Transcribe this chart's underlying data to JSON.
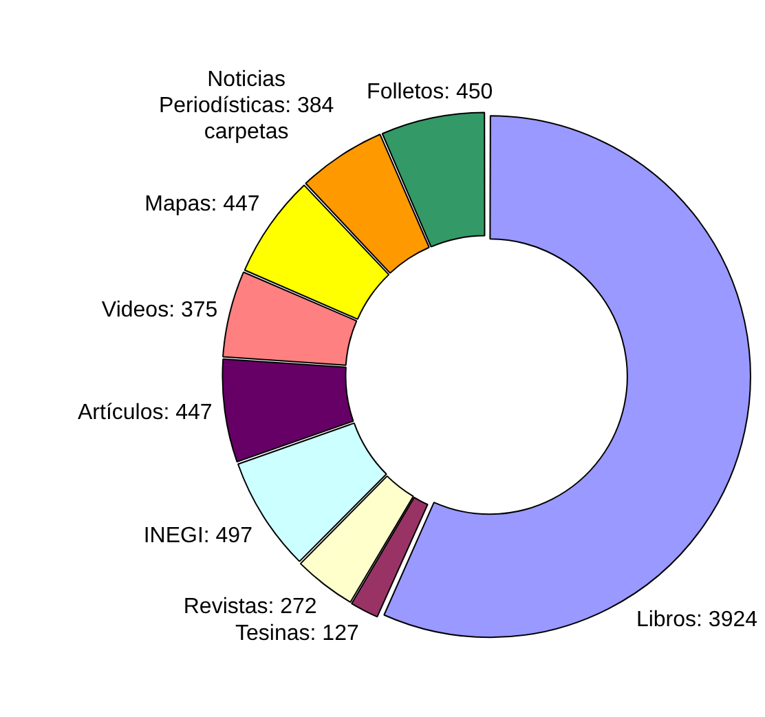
{
  "chart_data": {
    "type": "donut",
    "categories": [
      "Libros",
      "Tesinas",
      "Revistas",
      "INEGI",
      "Artículos",
      "Videos",
      "Mapas",
      "Noticias Periodísticas",
      "Folletos"
    ],
    "values": [
      3924,
      127,
      272,
      497,
      447,
      375,
      447,
      384,
      450
    ],
    "value_labels": [
      "3924",
      "127",
      "272",
      "497",
      "447",
      "375",
      "447",
      "384 carpetas",
      "450"
    ],
    "colors": [
      "#9999ff",
      "#993366",
      "#ffffcc",
      "#ccffff",
      "#660066",
      "#ff8080",
      "#ffff00",
      "#ff9900",
      "#339966"
    ],
    "legend": false
  }
}
